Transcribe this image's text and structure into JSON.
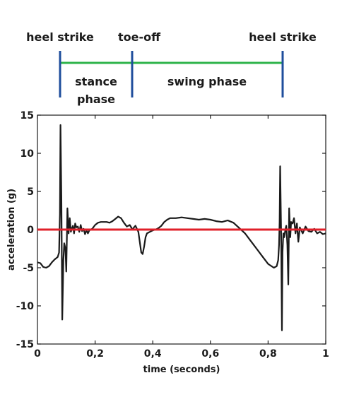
{
  "phases": {
    "event_labels": [
      "heel strike",
      "toe-off",
      "heel strike"
    ],
    "event_times": [
      0.08,
      0.33,
      0.85
    ],
    "stance_label_line1": "stance",
    "stance_label_line2": "phase",
    "swing_label": "swing phase",
    "event_marker_color": "#1f4e9c",
    "phase_line_color": "#2db34a"
  },
  "chart_data": {
    "type": "line",
    "xlabel": "time (seconds)",
    "ylabel": "acceleration (g)",
    "xlim": [
      0,
      1
    ],
    "ylim": [
      -15,
      15
    ],
    "x_ticks": [
      "0",
      "0,2",
      "0,4",
      "0,6",
      "0,8",
      "1"
    ],
    "y_ticks": [
      "15",
      "10",
      "5",
      "0",
      "-5",
      "-10",
      "-15"
    ],
    "grid": false,
    "series": [
      {
        "color": "#1a1a1a",
        "x": [
          0,
          0.01,
          0.02,
          0.03,
          0.04,
          0.05,
          0.06,
          0.07,
          0.075,
          0.078,
          0.08,
          0.083,
          0.086,
          0.09,
          0.093,
          0.097,
          0.1,
          0.104,
          0.108,
          0.112,
          0.116,
          0.12,
          0.123,
          0.127,
          0.131,
          0.135,
          0.14,
          0.145,
          0.15,
          0.155,
          0.16,
          0.165,
          0.17,
          0.175,
          0.18,
          0.19,
          0.2,
          0.21,
          0.22,
          0.23,
          0.24,
          0.25,
          0.26,
          0.27,
          0.28,
          0.29,
          0.3,
          0.31,
          0.32,
          0.33,
          0.335,
          0.34,
          0.35,
          0.355,
          0.36,
          0.365,
          0.37,
          0.375,
          0.38,
          0.39,
          0.4,
          0.41,
          0.42,
          0.43,
          0.44,
          0.45,
          0.46,
          0.47,
          0.48,
          0.5,
          0.52,
          0.54,
          0.56,
          0.58,
          0.6,
          0.62,
          0.64,
          0.66,
          0.68,
          0.7,
          0.72,
          0.74,
          0.76,
          0.78,
          0.8,
          0.82,
          0.83,
          0.835,
          0.838,
          0.84,
          0.842,
          0.845,
          0.848,
          0.85,
          0.853,
          0.856,
          0.86,
          0.863,
          0.867,
          0.87,
          0.873,
          0.877,
          0.88,
          0.885,
          0.89,
          0.895,
          0.9,
          0.905,
          0.91,
          0.92,
          0.93,
          0.94,
          0.95,
          0.96,
          0.97,
          0.98,
          0.99,
          1.0
        ],
        "y": [
          -4.3,
          -4.4,
          -4.9,
          -5.0,
          -4.8,
          -4.3,
          -3.9,
          -3.6,
          -3.0,
          2.0,
          13.7,
          4.0,
          -11.8,
          -4.0,
          -1.8,
          -2.5,
          -5.5,
          2.8,
          -0.5,
          1.5,
          -0.3,
          0.2,
          0.5,
          -0.5,
          0.8,
          0.3,
          0.4,
          -0.3,
          0.6,
          -0.2,
          0.1,
          -0.6,
          -0.1,
          -0.5,
          -0.1,
          0.1,
          0.6,
          0.9,
          1.0,
          1.0,
          1.0,
          0.9,
          1.1,
          1.4,
          1.7,
          1.5,
          0.9,
          0.4,
          0.6,
          0.0,
          0.3,
          0.5,
          -0.3,
          -1.6,
          -3.0,
          -3.2,
          -2.2,
          -1.0,
          -0.5,
          -0.3,
          -0.1,
          0.0,
          0.2,
          0.5,
          1.0,
          1.3,
          1.5,
          1.5,
          1.5,
          1.6,
          1.5,
          1.4,
          1.3,
          1.4,
          1.3,
          1.1,
          1.0,
          1.2,
          0.9,
          0.2,
          -0.5,
          -1.5,
          -2.5,
          -3.5,
          -4.5,
          -5.0,
          -4.8,
          -4.0,
          -2.0,
          1.0,
          8.3,
          0.0,
          -13.2,
          -3.0,
          -0.5,
          -1.0,
          0.0,
          0.5,
          -2.0,
          -7.2,
          2.8,
          -1.0,
          1.0,
          0.8,
          1.5,
          -0.5,
          0.8,
          -1.6,
          0.3,
          -0.5,
          0.4,
          -0.2,
          -0.3,
          0.1,
          -0.5,
          -0.3,
          -0.6,
          -0.5
        ]
      },
      {
        "color": "#e0202a",
        "x": [
          0,
          1
        ],
        "y": [
          0,
          0
        ]
      }
    ]
  }
}
